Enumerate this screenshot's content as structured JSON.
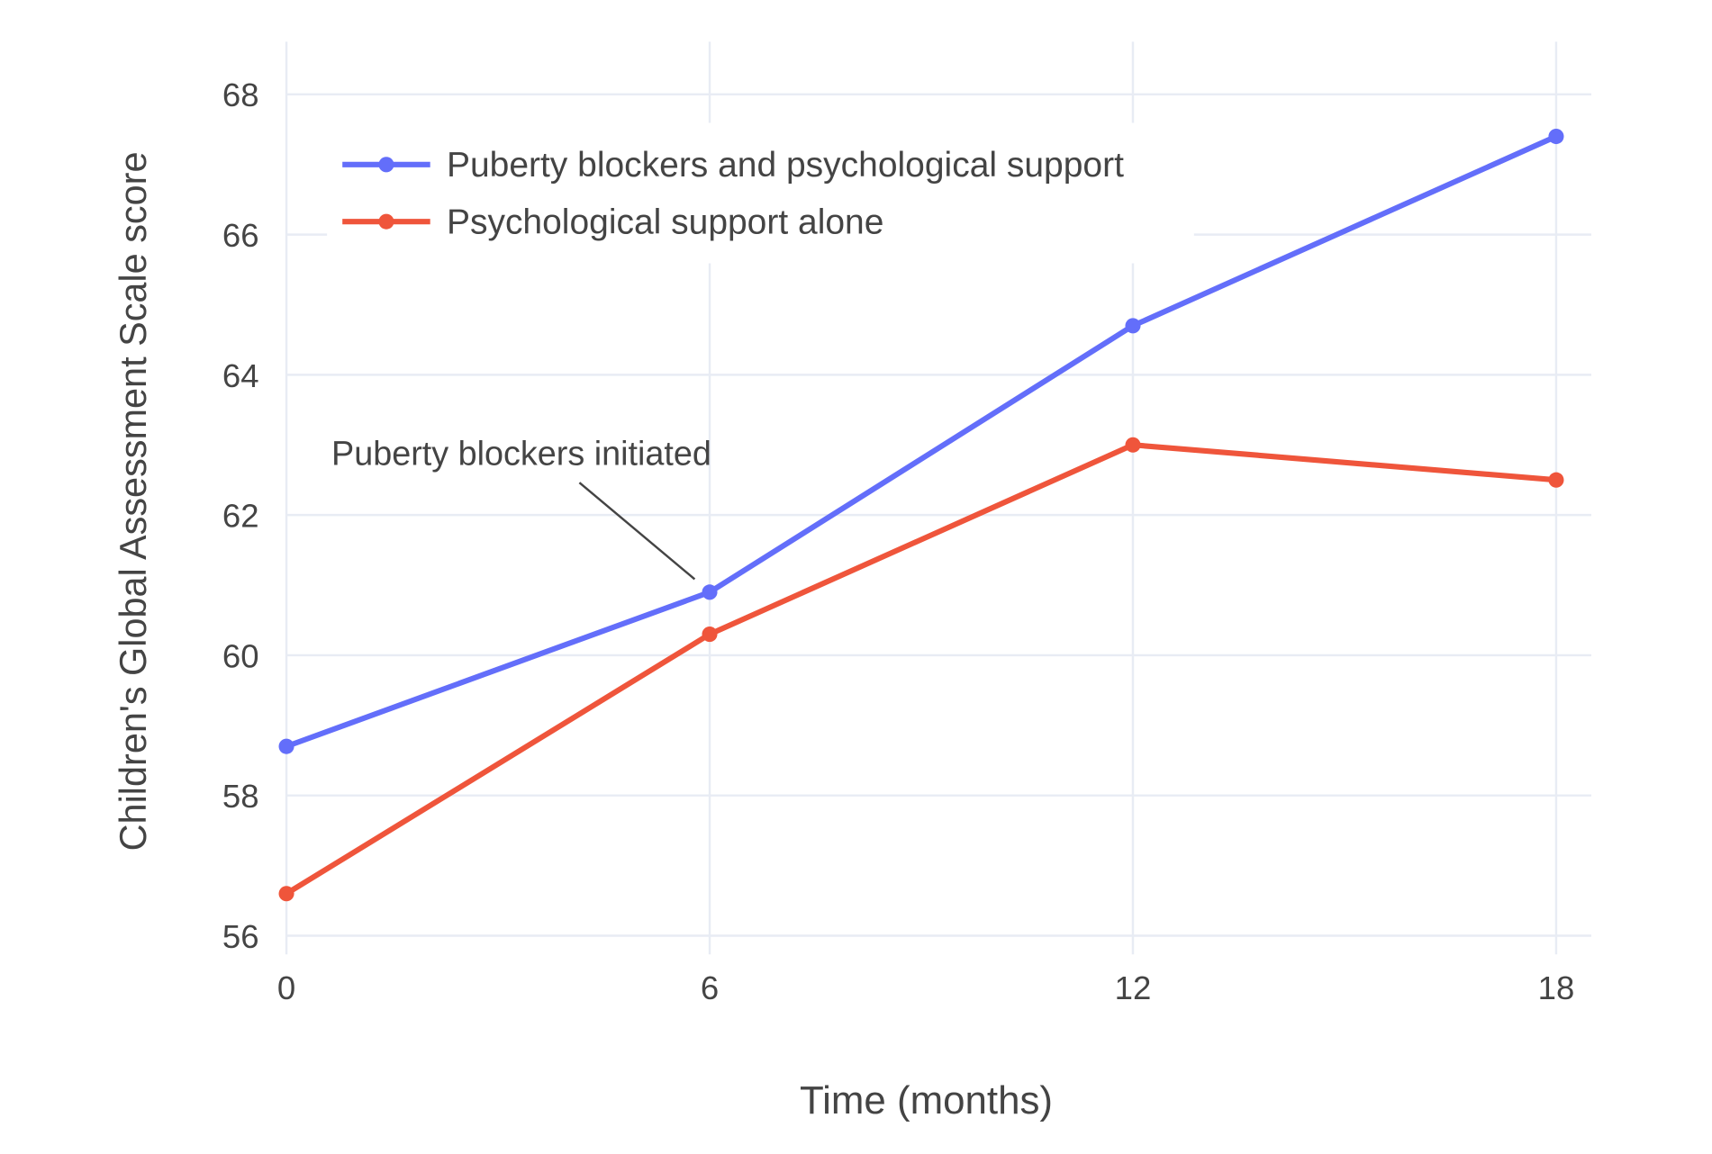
{
  "chart_data": {
    "type": "line",
    "title": "",
    "xlabel": "Time (months)",
    "ylabel": "Children's Global Assessment Scale score",
    "x": [
      0,
      6,
      12,
      18
    ],
    "x_ticks": [
      "0",
      "6",
      "12",
      "18"
    ],
    "y_ticks": [
      "56",
      "58",
      "60",
      "62",
      "64",
      "66",
      "68"
    ],
    "xlim": [
      0,
      18
    ],
    "ylim": [
      55.7,
      68.7
    ],
    "grid": true,
    "legend_position": "top-left",
    "series": [
      {
        "name": "Puberty blockers and psychological support",
        "values": [
          58.7,
          60.9,
          64.7,
          67.4
        ],
        "color": "#636efa"
      },
      {
        "name": "Psychological support alone",
        "values": [
          56.6,
          60.3,
          63.0,
          62.5
        ],
        "color": "#ef553b"
      }
    ],
    "annotations": [
      {
        "text": "Puberty blockers initiated",
        "x": 6,
        "y": 60.9,
        "arrow": true
      }
    ]
  }
}
